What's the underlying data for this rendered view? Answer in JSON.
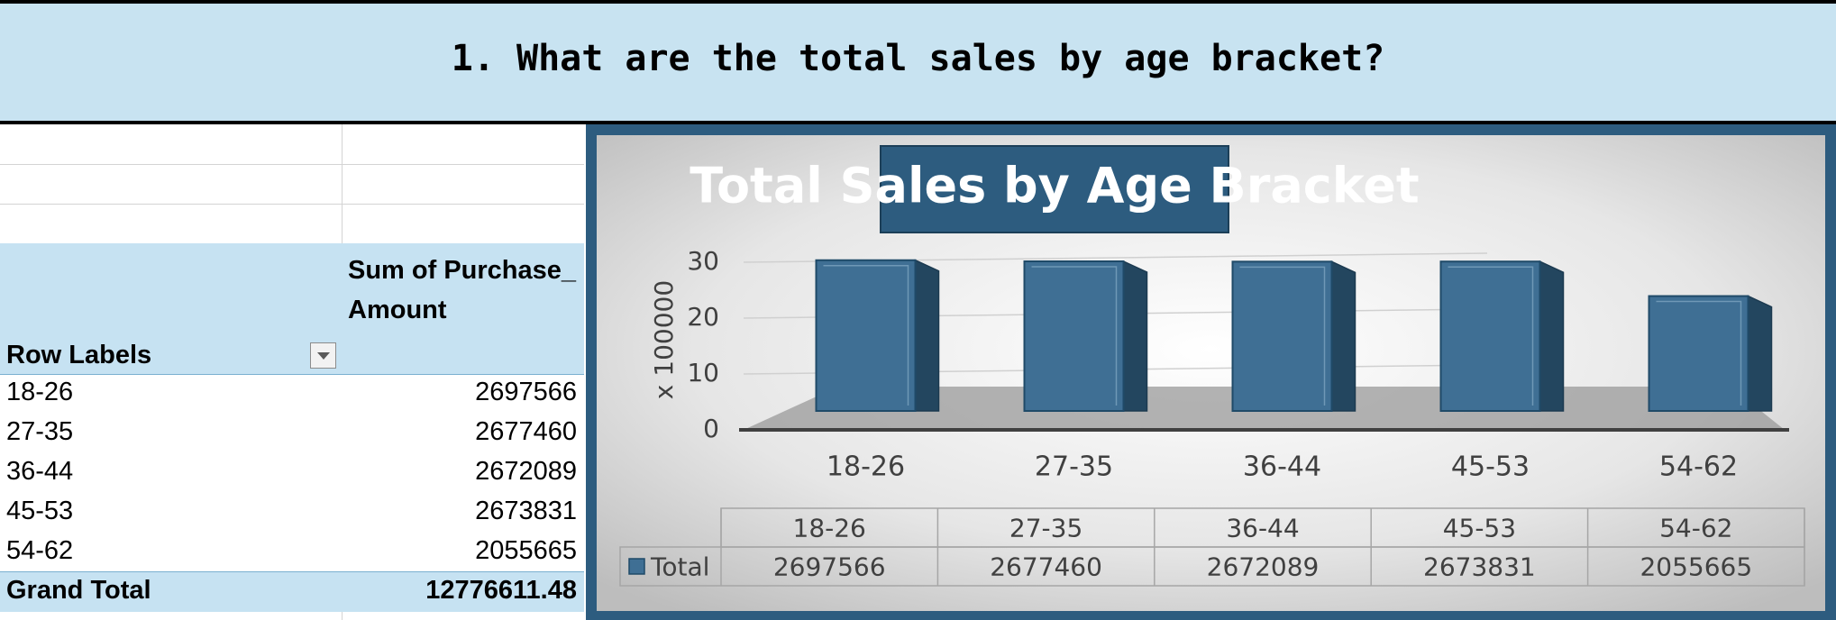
{
  "question": "1. What are the total sales by age bracket?",
  "pivot": {
    "row_labels_header": "Row Labels",
    "sum_header": "Sum of Purchase_Amount",
    "rows": [
      {
        "label": "18-26",
        "value": "2697566"
      },
      {
        "label": "27-35",
        "value": "2677460"
      },
      {
        "label": "36-44",
        "value": "2672089"
      },
      {
        "label": "45-53",
        "value": "2673831"
      },
      {
        "label": "54-62",
        "value": "2055665"
      }
    ],
    "grand_total_label": "Grand Total",
    "grand_total_value": "12776611.48"
  },
  "chart_data": {
    "type": "bar",
    "title": "Total Sales by Age Bracket",
    "categories": [
      "18-26",
      "27-35",
      "36-44",
      "45-53",
      "54-62"
    ],
    "series": [
      {
        "name": "Total",
        "values": [
          2697566,
          2677460,
          2672089,
          2673831,
          2055665
        ]
      }
    ],
    "y_display_unit": "x 100000",
    "y_ticks": [
      "0",
      "10",
      "20",
      "30"
    ],
    "ylim": [
      0,
      30
    ],
    "data_table": {
      "series_label": "Total",
      "values_text": [
        "2697566",
        "2677460",
        "2672089",
        "2673831",
        "2055665"
      ]
    },
    "colors": {
      "bar": "#3f6f94",
      "frame": "#2d5c7f",
      "title_bg": "#2d5c7f"
    }
  }
}
